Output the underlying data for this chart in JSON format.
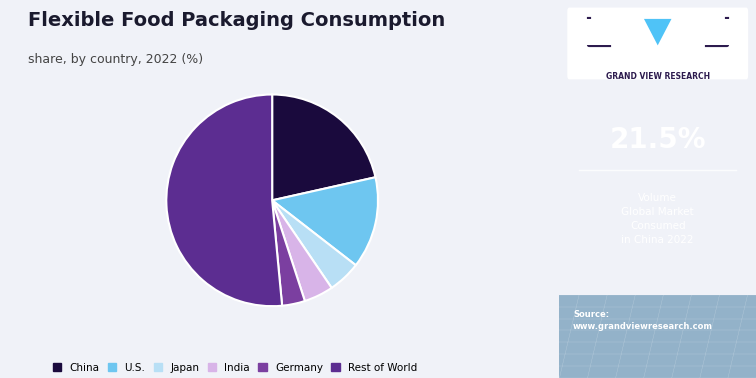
{
  "title": "Flexible Food Packaging Consumption",
  "subtitle": "share, by country, 2022 (%)",
  "labels": [
    "China",
    "U.S.",
    "Japan",
    "India",
    "Germany",
    "Rest of World"
  ],
  "values": [
    21.5,
    14.0,
    5.0,
    4.5,
    3.5,
    51.5
  ],
  "colors": [
    "#1a0a3d",
    "#6ec6f0",
    "#b8dff5",
    "#d8b4e8",
    "#7b3fa0",
    "#5c2d91"
  ],
  "sidebar_bg": "#2d1b4e",
  "sidebar_accent": "#4fc3f7",
  "main_bg": "#f0f2f8",
  "stat_value": "21.5%",
  "stat_label": "Volume\nGlobal Market\nConsumed\nin China 2022",
  "source_text": "Source:\nwww.grandviewresearch.com",
  "company": "GRAND VIEW RESEARCH"
}
